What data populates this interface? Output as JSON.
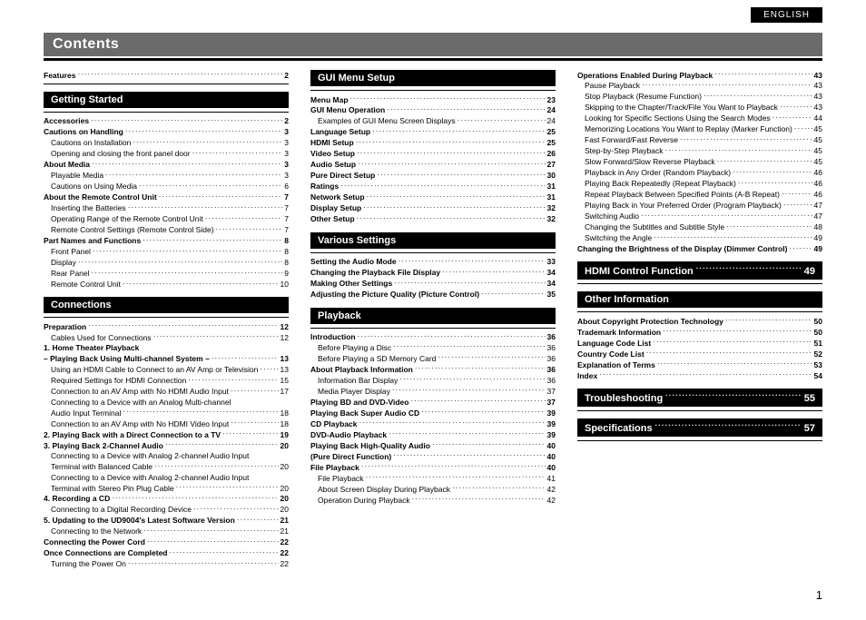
{
  "header": {
    "language": "ENGLISH",
    "title": "Contents"
  },
  "footer": {
    "page": "1"
  },
  "col1": [
    {
      "type": "row",
      "label": "Features",
      "page": "2",
      "bold": true,
      "rule": true
    },
    {
      "type": "head",
      "label": "Getting Started"
    },
    {
      "type": "row",
      "label": "Accessories",
      "page": "2",
      "bold": true
    },
    {
      "type": "row",
      "label": "Cautions on Handling",
      "page": "3",
      "bold": true
    },
    {
      "type": "row",
      "label": "Cautions on Installation",
      "page": "3",
      "indent": 1
    },
    {
      "type": "row",
      "label": "Opening and closing the front panel door",
      "page": "3",
      "indent": 1
    },
    {
      "type": "row",
      "label": "About Media",
      "page": "3",
      "bold": true
    },
    {
      "type": "row",
      "label": "Playable Media",
      "page": "3",
      "indent": 1
    },
    {
      "type": "row",
      "label": "Cautions on Using Media",
      "page": "6",
      "indent": 1
    },
    {
      "type": "row",
      "label": "About the Remote Control Unit",
      "page": "7",
      "bold": true
    },
    {
      "type": "row",
      "label": "Inserting the Batteries",
      "page": "7",
      "indent": 1
    },
    {
      "type": "row",
      "label": "Operating Range of the Remote Control Unit",
      "page": "7",
      "indent": 1
    },
    {
      "type": "row",
      "label": "Remote Control Settings (Remote Control Side)",
      "page": "7",
      "indent": 1
    },
    {
      "type": "row",
      "label": "Part Names and Functions",
      "page": "8",
      "bold": true
    },
    {
      "type": "row",
      "label": "Front Panel",
      "page": "8",
      "indent": 1
    },
    {
      "type": "row",
      "label": "Display",
      "page": "8",
      "indent": 1
    },
    {
      "type": "row",
      "label": "Rear Panel",
      "page": "9",
      "indent": 1
    },
    {
      "type": "row",
      "label": "Remote Control Unit",
      "page": "10",
      "indent": 1
    },
    {
      "type": "head",
      "label": "Connections"
    },
    {
      "type": "row",
      "label": "Preparation",
      "page": "12",
      "bold": true
    },
    {
      "type": "row",
      "label": "Cables Used for Connections",
      "page": "12",
      "indent": 1
    },
    {
      "type": "row",
      "label": "1. Home Theater Playback",
      "page": "",
      "bold": true,
      "nodots": true
    },
    {
      "type": "row",
      "label": "– Playing Back Using Multi-channel System –",
      "page": "13",
      "bold": true
    },
    {
      "type": "row",
      "label": "Using an HDMI Cable to Connect to an AV Amp or Television",
      "page": "13",
      "indent": 1
    },
    {
      "type": "row",
      "label": "Required Settings for HDMI Connection",
      "page": "15",
      "indent": 1
    },
    {
      "type": "row",
      "label": "Connection to an AV Amp with No HDMI Audio Input",
      "page": "17",
      "indent": 1
    },
    {
      "type": "row",
      "label": "Connecting to a Device with an Analog Multi-channel",
      "page": "",
      "indent": 1,
      "nodots": true
    },
    {
      "type": "row",
      "label": "Audio Input Terminal",
      "page": "18",
      "indent": 1
    },
    {
      "type": "row",
      "label": "Connection to an AV Amp with No HDMI Video Input",
      "page": "18",
      "indent": 1
    },
    {
      "type": "row",
      "label": "2. Playing Back with a Direct Connection to a TV",
      "page": "19",
      "bold": true
    },
    {
      "type": "row",
      "label": "3. Playing Back 2-Channel Audio",
      "page": "20",
      "bold": true
    },
    {
      "type": "row",
      "label": "Connecting to a Device with Analog 2-channel Audio Input",
      "page": "",
      "indent": 1,
      "nodots": true
    },
    {
      "type": "row",
      "label": "Terminal with Balanced Cable",
      "page": "20",
      "indent": 1
    },
    {
      "type": "row",
      "label": "Connecting to a Device with Analog 2-channel Audio Input",
      "page": "",
      "indent": 1,
      "nodots": true
    },
    {
      "type": "row",
      "label": "Terminal with Stereo Pin Plug Cable",
      "page": "20",
      "indent": 1
    },
    {
      "type": "row",
      "label": "4. Recording a CD",
      "page": "20",
      "bold": true
    },
    {
      "type": "row",
      "label": "Connecting to a Digital Recording Device",
      "page": "20",
      "indent": 1
    },
    {
      "type": "row",
      "label": "5. Updating to the UD9004's Latest Software Version",
      "page": "21",
      "bold": true
    },
    {
      "type": "row",
      "label": "Connecting to the Network",
      "page": "21",
      "indent": 1
    },
    {
      "type": "row",
      "label": "Connecting the Power Cord",
      "page": "22",
      "bold": true
    },
    {
      "type": "row",
      "label": "Once Connections are Completed",
      "page": "22",
      "bold": true
    },
    {
      "type": "row",
      "label": "Turning the Power On",
      "page": "22",
      "indent": 1
    }
  ],
  "col2": [
    {
      "type": "head",
      "label": "GUI Menu Setup",
      "first": true
    },
    {
      "type": "row",
      "label": "Menu Map",
      "page": "23",
      "bold": true
    },
    {
      "type": "row",
      "label": "GUI Menu Operation",
      "page": "24",
      "bold": true
    },
    {
      "type": "row",
      "label": "Examples of GUI Menu Screen Displays",
      "page": "24",
      "indent": 1
    },
    {
      "type": "row",
      "label": "Language Setup",
      "page": "25",
      "bold": true
    },
    {
      "type": "row",
      "label": "HDMI Setup",
      "page": "25",
      "bold": true
    },
    {
      "type": "row",
      "label": "Video Setup",
      "page": "26",
      "bold": true
    },
    {
      "type": "row",
      "label": "Audio Setup",
      "page": "27",
      "bold": true
    },
    {
      "type": "row",
      "label": "Pure Direct Setup",
      "page": "30",
      "bold": true
    },
    {
      "type": "row",
      "label": "Ratings",
      "page": "31",
      "bold": true
    },
    {
      "type": "row",
      "label": "Network Setup",
      "page": "31",
      "bold": true
    },
    {
      "type": "row",
      "label": "Display Setup",
      "page": "32",
      "bold": true
    },
    {
      "type": "row",
      "label": "Other Setup",
      "page": "32",
      "bold": true
    },
    {
      "type": "head",
      "label": "Various Settings"
    },
    {
      "type": "row",
      "label": "Setting the Audio Mode",
      "page": "33",
      "bold": true
    },
    {
      "type": "row",
      "label": "Changing the Playback File Display",
      "page": "34",
      "bold": true
    },
    {
      "type": "row",
      "label": "Making Other Settings",
      "page": "34",
      "bold": true
    },
    {
      "type": "row",
      "label": "Adjusting the Picture Quality (Picture Control)",
      "page": "35",
      "bold": true
    },
    {
      "type": "head",
      "label": "Playback"
    },
    {
      "type": "row",
      "label": "Introduction",
      "page": "36",
      "bold": true
    },
    {
      "type": "row",
      "label": "Before Playing a Disc",
      "page": "36",
      "indent": 1
    },
    {
      "type": "row",
      "label": "Before Playing a SD Memory Card",
      "page": "36",
      "indent": 1
    },
    {
      "type": "row",
      "label": "About Playback Information",
      "page": "36",
      "bold": true
    },
    {
      "type": "row",
      "label": "Information Bar Display",
      "page": "36",
      "indent": 1
    },
    {
      "type": "row",
      "label": "Media Player Display",
      "page": "37",
      "indent": 1
    },
    {
      "type": "row",
      "label": "Playing BD and DVD-Video",
      "page": "37",
      "bold": true
    },
    {
      "type": "row",
      "label": "Playing Back Super Audio CD",
      "page": "39",
      "bold": true
    },
    {
      "type": "row",
      "label": "CD Playback",
      "page": "39",
      "bold": true
    },
    {
      "type": "row",
      "label": "DVD-Audio Playback",
      "page": "39",
      "bold": true
    },
    {
      "type": "row",
      "label": "Playing Back High-Quality Audio",
      "page": "40",
      "bold": true
    },
    {
      "type": "row",
      "label": "(Pure Direct Function)",
      "page": "40",
      "bold": true
    },
    {
      "type": "row",
      "label": "File Playback",
      "page": "40",
      "bold": true
    },
    {
      "type": "row",
      "label": "File Playback",
      "page": "41",
      "indent": 1
    },
    {
      "type": "row",
      "label": "About Screen Display During Playback",
      "page": "42",
      "indent": 1
    },
    {
      "type": "row",
      "label": "Operation During Playback",
      "page": "42",
      "indent": 1
    }
  ],
  "col3": [
    {
      "type": "row",
      "label": "Operations Enabled During Playback",
      "page": "43",
      "bold": true
    },
    {
      "type": "row",
      "label": "Pause Playback",
      "page": "43",
      "indent": 1
    },
    {
      "type": "row",
      "label": "Stop Playback (Resume Function)",
      "page": "43",
      "indent": 1
    },
    {
      "type": "row",
      "label": "Skipping to the Chapter/Track/File You Want to Playback",
      "page": "43",
      "indent": 1
    },
    {
      "type": "row",
      "label": "Looking for Specific Sections Using the Search Modes",
      "page": "44",
      "indent": 1
    },
    {
      "type": "row",
      "label": "Memorizing Locations You Want to Replay (Marker Function)",
      "page": "45",
      "indent": 1
    },
    {
      "type": "row",
      "label": "Fast Forward/Fast Reverse",
      "page": "45",
      "indent": 1
    },
    {
      "type": "row",
      "label": "Step-by-Step Playback",
      "page": "45",
      "indent": 1
    },
    {
      "type": "row",
      "label": "Slow Forward/Slow Reverse Playback",
      "page": "45",
      "indent": 1
    },
    {
      "type": "row",
      "label": "Playback in Any Order (Random Playback)",
      "page": "46",
      "indent": 1
    },
    {
      "type": "row",
      "label": "Playing Back Repeatedly (Repeat Playback)",
      "page": "46",
      "indent": 1
    },
    {
      "type": "row",
      "label": "Repeat Playback Between Specified Points (A-B Repeat)",
      "page": "46",
      "indent": 1
    },
    {
      "type": "row",
      "label": "Playing Back in Your Preferred Order (Program Playback)",
      "page": "47",
      "indent": 1
    },
    {
      "type": "row",
      "label": "Switching Audio",
      "page": "47",
      "indent": 1
    },
    {
      "type": "row",
      "label": "Changing the Subtitles and Subtitle Style",
      "page": "48",
      "indent": 1
    },
    {
      "type": "row",
      "label": "Switching the Angle",
      "page": "49",
      "indent": 1
    },
    {
      "type": "row",
      "label": "Changing the Brightness of the Display (Dimmer Control)",
      "page": "49",
      "bold": true
    },
    {
      "type": "headrow",
      "label": "HDMI Control Function",
      "page": "49"
    },
    {
      "type": "head",
      "label": "Other Information"
    },
    {
      "type": "row",
      "label": "About Copyright Protection Technology",
      "page": "50",
      "bold": true
    },
    {
      "type": "row",
      "label": "Trademark Information",
      "page": "50",
      "bold": true
    },
    {
      "type": "row",
      "label": "Language Code List",
      "page": "51",
      "bold": true
    },
    {
      "type": "row",
      "label": "Country Code List",
      "page": "52",
      "bold": true
    },
    {
      "type": "row",
      "label": "Explanation of Terms",
      "page": "53",
      "bold": true
    },
    {
      "type": "row",
      "label": "Index",
      "page": "54",
      "bold": true
    },
    {
      "type": "headrow",
      "label": "Troubleshooting",
      "page": "55"
    },
    {
      "type": "headrow",
      "label": "Specifications",
      "page": "57"
    }
  ]
}
